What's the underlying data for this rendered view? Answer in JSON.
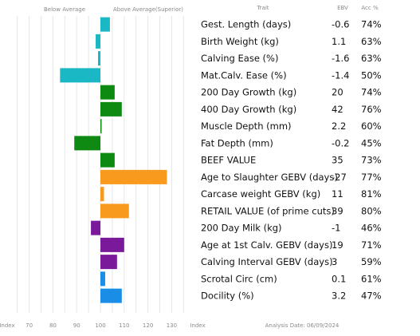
{
  "chart_data": {
    "type": "bar",
    "orientation": "horizontal",
    "header": {
      "below": "Below Average",
      "above": "Above Average(Superior)",
      "trait": "Trait",
      "ebv": "EBV",
      "acc": "Acc %"
    },
    "x_axis_label": "Index",
    "x_axis_label_right": "Index",
    "x_ticks": [
      70,
      80,
      90,
      100,
      110,
      120,
      130
    ],
    "xlim": [
      65,
      135
    ],
    "baseline": 100,
    "footer": "Analysis Date: 06/09/2024",
    "colors": {
      "teal": "#1ab8c4",
      "green": "#0e8a12",
      "orange": "#f79a1e",
      "purple": "#7a1a9a",
      "blue": "#1a8ee6"
    },
    "rows": [
      {
        "trait": "Gest. Length (days)",
        "ebv": "-0.6",
        "acc": "74%",
        "index": 104,
        "color": "#1ab8c4"
      },
      {
        "trait": "Birth Weight (kg)",
        "ebv": "1.1",
        "acc": "63%",
        "index": 98,
        "color": "#1ab8c4"
      },
      {
        "trait": "Calving Ease (%)",
        "ebv": "-1.6",
        "acc": "63%",
        "index": 99,
        "color": "#1ab8c4"
      },
      {
        "trait": "Mat.Calv. Ease (%)",
        "ebv": "-1.4",
        "acc": "50%",
        "index": 83,
        "color": "#1ab8c4"
      },
      {
        "trait": "200 Day Growth (kg)",
        "ebv": "20",
        "acc": "74%",
        "index": 106,
        "color": "#0e8a12"
      },
      {
        "trait": "400 Day Growth (kg)",
        "ebv": "42",
        "acc": "76%",
        "index": 109,
        "color": "#0e8a12"
      },
      {
        "trait": "Muscle Depth (mm)",
        "ebv": "2.2",
        "acc": "60%",
        "index": 100.5,
        "color": "#0e8a12"
      },
      {
        "trait": "Fat Depth (mm)",
        "ebv": "-0.2",
        "acc": "45%",
        "index": 89,
        "color": "#0e8a12"
      },
      {
        "trait": "BEEF VALUE",
        "ebv": "35",
        "acc": "73%",
        "index": 106,
        "color": "#0e8a12"
      },
      {
        "trait": "Age to Slaughter GEBV (days)",
        "ebv": "-27",
        "acc": "77%",
        "index": 128,
        "color": "#f79a1e"
      },
      {
        "trait": "Carcase weight GEBV (kg)",
        "ebv": "11",
        "acc": "81%",
        "index": 101.5,
        "color": "#f79a1e"
      },
      {
        "trait": "RETAIL VALUE (of prime cuts)",
        "ebv": "39",
        "acc": "80%",
        "index": 112,
        "color": "#f79a1e"
      },
      {
        "trait": "200 Day Milk (kg)",
        "ebv": "-1",
        "acc": "46%",
        "index": 96,
        "color": "#7a1a9a"
      },
      {
        "trait": "Age at 1st Calv. GEBV (days)",
        "ebv": "19",
        "acc": "71%",
        "index": 110,
        "color": "#7a1a9a"
      },
      {
        "trait": "Calving Interval GEBV (days)",
        "ebv": "3",
        "acc": "59%",
        "index": 107,
        "color": "#7a1a9a"
      },
      {
        "trait": "Scrotal Circ (cm)",
        "ebv": "0.1",
        "acc": "61%",
        "index": 102,
        "color": "#1a8ee6"
      },
      {
        "trait": "Docility (%)",
        "ebv": "3.2",
        "acc": "47%",
        "index": 109,
        "color": "#1a8ee6"
      }
    ]
  }
}
